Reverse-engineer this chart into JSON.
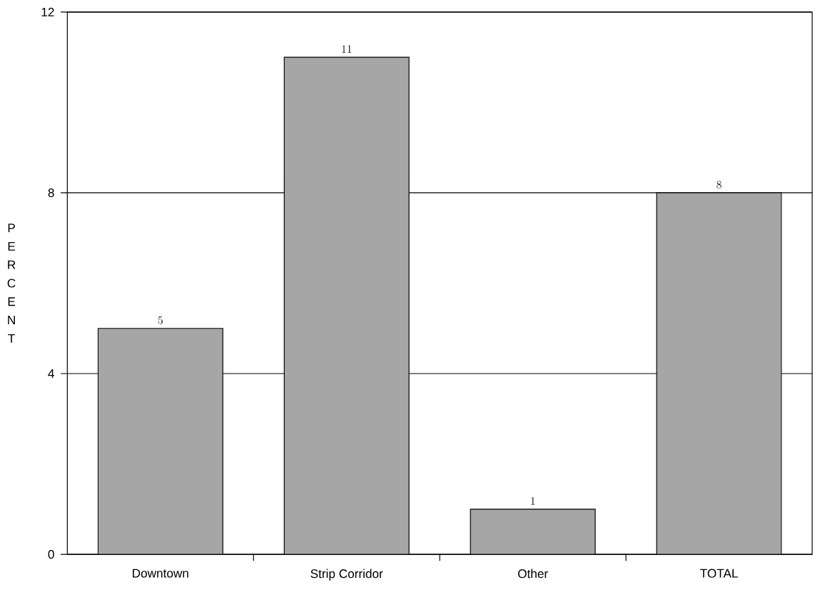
{
  "chart_data": {
    "type": "bar",
    "ylabel": "PERCENT",
    "categories": [
      "Downtown",
      "Strip Corridor",
      "Other",
      "TOTAL"
    ],
    "values": [
      5,
      11,
      1,
      8
    ],
    "color": "#a6a6a6",
    "ylim": [
      0,
      12
    ],
    "yticks": [
      0,
      4,
      8,
      12
    ],
    "grid": "y",
    "data_labels": true
  }
}
